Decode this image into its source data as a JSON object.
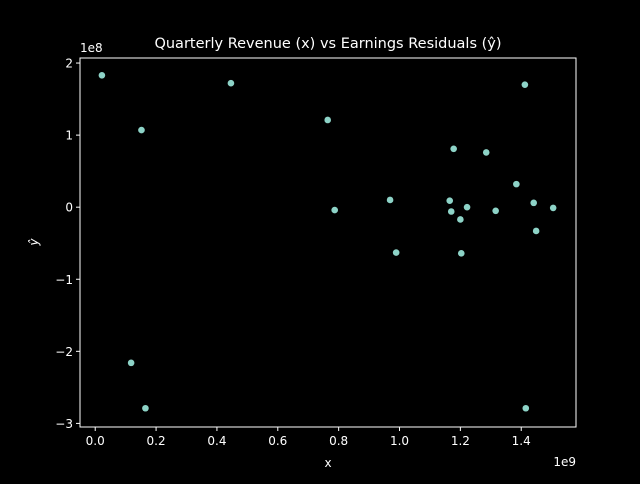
{
  "chart_data": {
    "type": "scatter",
    "title": "Quarterly Revenue (x) vs Earnings Residuals (ŷ)",
    "xlabel": "x",
    "ylabel": "ŷ",
    "x_offset_label": "1e9",
    "y_offset_label": "1e8",
    "xlim": [
      -50000000,
      1580000000
    ],
    "ylim": [
      -305000000,
      207000000
    ],
    "x_ticks": [
      0,
      200000000,
      400000000,
      600000000,
      800000000,
      1000000000,
      1200000000,
      1400000000
    ],
    "x_tick_labels": [
      "0.0",
      "0.2",
      "0.4",
      "0.6",
      "0.8",
      "1.0",
      "1.2",
      "1.4"
    ],
    "y_ticks": [
      -300000000,
      -200000000,
      -100000000,
      0,
      100000000,
      200000000
    ],
    "y_tick_labels": [
      "−3",
      "−2",
      "−1",
      "0",
      "1",
      "2"
    ],
    "grid": false,
    "background": "#000000",
    "axes_color": "#ffffff",
    "marker_color": "#8dd3c7",
    "points": [
      {
        "x": 22000000,
        "y": 183000000
      },
      {
        "x": 118000000,
        "y": -216000000
      },
      {
        "x": 152000000,
        "y": 107000000
      },
      {
        "x": 165000000,
        "y": -279000000
      },
      {
        "x": 446000000,
        "y": 172000000
      },
      {
        "x": 764000000,
        "y": 121000000
      },
      {
        "x": 787000000,
        "y": -4000000
      },
      {
        "x": 969000000,
        "y": 10000000
      },
      {
        "x": 989000000,
        "y": -63000000
      },
      {
        "x": 1165000000,
        "y": 9000000
      },
      {
        "x": 1170000000,
        "y": -6000000
      },
      {
        "x": 1178000000,
        "y": 81000000
      },
      {
        "x": 1200000000,
        "y": -17000000
      },
      {
        "x": 1203000000,
        "y": -64000000
      },
      {
        "x": 1222000000,
        "y": 0
      },
      {
        "x": 1285000000,
        "y": 76000000
      },
      {
        "x": 1316000000,
        "y": -5000000
      },
      {
        "x": 1384000000,
        "y": 32000000
      },
      {
        "x": 1412000000,
        "y": 170000000
      },
      {
        "x": 1415000000,
        "y": -279000000
      },
      {
        "x": 1441000000,
        "y": 6000000
      },
      {
        "x": 1449000000,
        "y": -33000000
      },
      {
        "x": 1505000000,
        "y": -1000000
      }
    ]
  }
}
